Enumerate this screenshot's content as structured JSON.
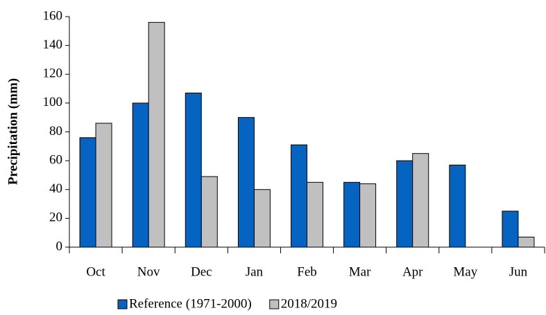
{
  "chart_data": {
    "type": "bar",
    "y_label": "Precipitation (mm)",
    "categories": [
      "Oct",
      "Nov",
      "Dec",
      "Jan",
      "Feb",
      "Mar",
      "Apr",
      "May",
      "Jun"
    ],
    "series": [
      {
        "name": "Reference (1971-2000)",
        "color": "#0563c1",
        "values": [
          76,
          100,
          107,
          90,
          71,
          45,
          60,
          57,
          25
        ]
      },
      {
        "name": "2018/2019",
        "color": "#c0c0c0",
        "values": [
          86,
          156,
          49,
          40,
          45,
          44,
          65,
          0,
          7
        ]
      }
    ],
    "ylim": [
      0,
      160
    ],
    "yticks": [
      0,
      20,
      40,
      60,
      80,
      100,
      120,
      140,
      160
    ],
    "grid": false
  }
}
